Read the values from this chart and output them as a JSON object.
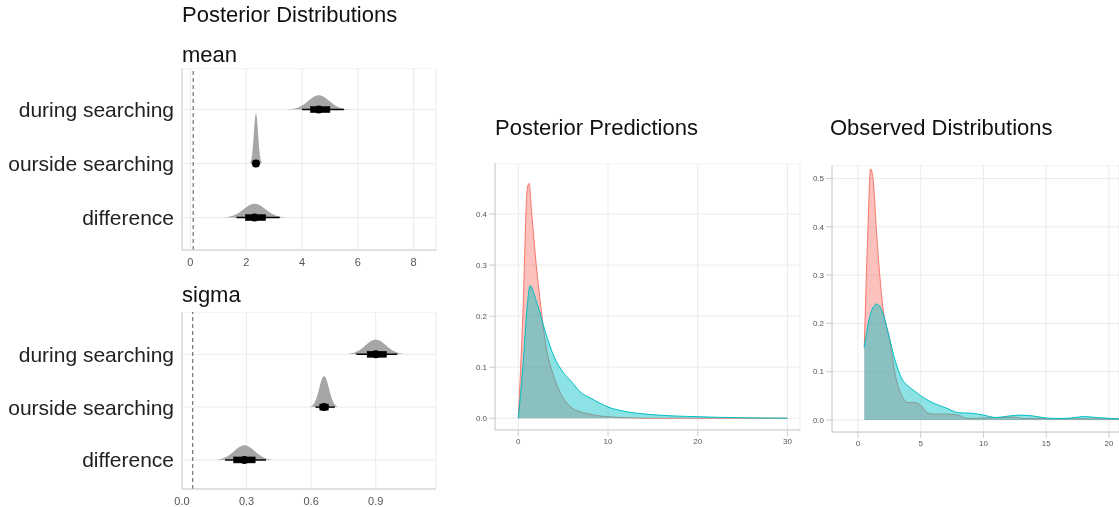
{
  "chart_data": [
    {
      "type": "box",
      "title": "Posterior Distributions",
      "subtitle": "mean",
      "orientation": "horizontal",
      "color": "#000000",
      "categories": [
        "during searching",
        "ourside searching",
        "difference"
      ],
      "boxes": [
        {
          "low": 4.0,
          "q1": 4.3,
          "median": 4.6,
          "q3": 5.0,
          "high": 5.5
        },
        {
          "low": 2.2,
          "q1": 2.25,
          "median": 2.35,
          "q3": 2.45,
          "high": 2.5
        },
        {
          "low": 1.65,
          "q1": 1.97,
          "median": 2.3,
          "q3": 2.7,
          "high": 3.2
        }
      ],
      "xlim": [
        -0.3,
        8.8
      ],
      "xticks": [
        0,
        2,
        4,
        6,
        8
      ],
      "ref_lines": [
        {
          "axis": "x",
          "value": 0.1,
          "line_style": "dashed"
        }
      ],
      "grid": true
    },
    {
      "type": "box",
      "title": "sigma",
      "orientation": "horizontal",
      "color": "#000000",
      "categories": [
        "during searching",
        "ourside searching",
        "difference"
      ],
      "boxes": [
        {
          "low": 0.81,
          "q1": 0.86,
          "median": 0.9,
          "q3": 0.95,
          "high": 1.0
        },
        {
          "low": 0.62,
          "q1": 0.64,
          "median": 0.66,
          "q3": 0.68,
          "high": 0.71
        },
        {
          "low": 0.2,
          "q1": 0.24,
          "median": 0.29,
          "q3": 0.34,
          "high": 0.39
        }
      ],
      "xlim": [
        0,
        1.18
      ],
      "xticks": [
        {
          "value": 0,
          "label": "0.0"
        },
        0.3,
        0.6,
        0.9
      ],
      "ref_lines": [
        {
          "axis": "x",
          "value": 0.05,
          "line_style": "dashed"
        }
      ],
      "grid": true
    },
    {
      "type": "area",
      "title": "Posterior Predictions",
      "xlim": [
        -2.6,
        31.4
      ],
      "xticks": [
        0,
        10,
        20,
        30
      ],
      "ylim": [
        -0.023,
        0.5
      ],
      "yticks": [
        {
          "value": 0,
          "label": "0.0"
        },
        0.1,
        0.2,
        0.3,
        0.4
      ],
      "grid": true,
      "series": [
        {
          "color": "#f8766d",
          "x": [
            0,
            0.5,
            1,
            1.2,
            1.5,
            2,
            2.5,
            3,
            4,
            5,
            6,
            8,
            10,
            15,
            30
          ],
          "values": [
            0,
            0.2,
            0.45,
            0.46,
            0.4,
            0.3,
            0.22,
            0.15,
            0.08,
            0.04,
            0.02,
            0.008,
            0.003,
            0,
            0
          ]
        },
        {
          "color": "#00bfc4",
          "x": [
            0,
            0.5,
            1,
            1.3,
            2,
            3,
            4,
            5,
            6,
            7,
            8,
            10,
            12,
            15,
            20,
            25,
            30
          ],
          "values": [
            0,
            0.1,
            0.22,
            0.26,
            0.23,
            0.17,
            0.12,
            0.09,
            0.07,
            0.05,
            0.04,
            0.022,
            0.013,
            0.007,
            0.003,
            0.001,
            0
          ]
        }
      ]
    },
    {
      "type": "area",
      "title": "Observed Distributions",
      "xlim": [
        -2.07,
        20.8
      ],
      "xticks": [
        0,
        5,
        10,
        15,
        20
      ],
      "ylim": [
        -0.025,
        0.528
      ],
      "yticks": [
        {
          "value": 0,
          "label": "0.0"
        },
        0.1,
        0.2,
        0.3,
        0.4,
        0.5
      ],
      "grid": true,
      "series": [
        {
          "color": "#f8766d",
          "x": [
            0.5,
            0.8,
            1,
            1.2,
            1.5,
            2,
            2.5,
            3,
            3.5,
            4,
            4.5,
            5,
            5.5,
            6,
            7,
            8,
            8.5,
            9,
            12.5,
            13,
            20.8
          ],
          "values": [
            0.15,
            0.4,
            0.52,
            0.5,
            0.38,
            0.23,
            0.17,
            0.09,
            0.05,
            0.036,
            0.036,
            0.03,
            0.015,
            0.012,
            0.012,
            0.01,
            0.004,
            0.003,
            0.006,
            0.003,
            0.002
          ]
        },
        {
          "color": "#00bfc4",
          "x": [
            0.5,
            1,
            1.5,
            2,
            2.5,
            3,
            3.5,
            4,
            4.5,
            5,
            6,
            7,
            8,
            9,
            10,
            11,
            12,
            13,
            14,
            15,
            16,
            17,
            18,
            19,
            20.8
          ],
          "values": [
            0.15,
            0.22,
            0.24,
            0.22,
            0.17,
            0.12,
            0.085,
            0.07,
            0.06,
            0.05,
            0.035,
            0.025,
            0.015,
            0.014,
            0.01,
            0.005,
            0.008,
            0.01,
            0.008,
            0.004,
            0.003,
            0.004,
            0.007,
            0.005,
            0.002
          ]
        }
      ]
    }
  ]
}
